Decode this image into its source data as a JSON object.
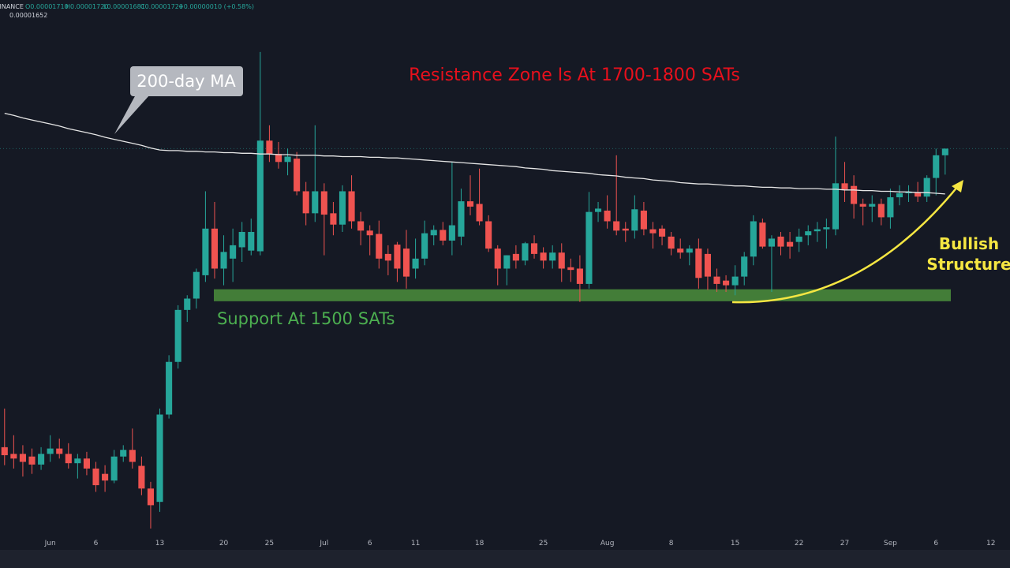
{
  "chart_data": {
    "type": "candlestick",
    "header": {
      "exchange": "BINANCE",
      "open": "O0.00001710",
      "high": "H0.00001720",
      "low": "L0.00001681",
      "close": "C0.00001720",
      "change": "+0.00000010 (+0.58%)",
      "ma_value": "0.00001652"
    },
    "title": "Resistance Zone Is At 1700-1800 SATs",
    "support_label": "Support At 1500 SATs",
    "structure_label": [
      "Bullish",
      "Structure"
    ],
    "support_band": {
      "low": 1491,
      "high": 1509,
      "color": "#4b8f3c"
    },
    "up_color": "#26a69a",
    "down_color": "#ef5350",
    "candles": {
      "open": [
        1272,
        1262,
        1262,
        1258,
        1246,
        1262,
        1270,
        1262,
        1248,
        1255,
        1240,
        1232,
        1222,
        1258,
        1268,
        1244,
        1210,
        1190,
        1321,
        1400,
        1478,
        1495,
        1530,
        1600,
        1540,
        1555,
        1572,
        1567,
        1566,
        1732,
        1712,
        1700,
        1705,
        1656,
        1623,
        1656,
        1623,
        1606,
        1656,
        1611,
        1597,
        1592,
        1562,
        1576,
        1570,
        1540,
        1555,
        1590,
        1598,
        1582,
        1588,
        1641,
        1637,
        1611,
        1570,
        1540,
        1562,
        1552,
        1578,
        1564,
        1552,
        1564,
        1542,
        1540,
        1517,
        1625,
        1627,
        1611,
        1600,
        1597,
        1627,
        1599,
        1600,
        1588,
        1570,
        1564,
        1570,
        1562,
        1528,
        1522,
        1515,
        1528,
        1558,
        1609,
        1573,
        1588,
        1580,
        1580,
        1590,
        1596,
        1599,
        1599,
        1668,
        1664,
        1637,
        1633,
        1637,
        1617,
        1647,
        1653,
        1655,
        1648,
        1676,
        1710
      ],
      "high": [
        1330,
        1290,
        1275,
        1270,
        1272,
        1290,
        1285,
        1278,
        1262,
        1265,
        1250,
        1245,
        1268,
        1275,
        1300,
        1258,
        1220,
        1330,
        1410,
        1485,
        1500,
        1540,
        1656,
        1640,
        1590,
        1600,
        1610,
        1615,
        1865,
        1755,
        1730,
        1720,
        1715,
        1670,
        1755,
        1668,
        1640,
        1665,
        1680,
        1625,
        1605,
        1612,
        1575,
        1580,
        1598,
        1585,
        1612,
        1605,
        1610,
        1700,
        1660,
        1680,
        1690,
        1620,
        1575,
        1560,
        1575,
        1580,
        1590,
        1572,
        1575,
        1578,
        1555,
        1560,
        1655,
        1640,
        1650,
        1710,
        1610,
        1650,
        1640,
        1610,
        1605,
        1595,
        1585,
        1575,
        1585,
        1570,
        1540,
        1530,
        1545,
        1565,
        1620,
        1615,
        1590,
        1595,
        1595,
        1600,
        1605,
        1610,
        1615,
        1738,
        1700,
        1680,
        1645,
        1650,
        1645,
        1660,
        1665,
        1665,
        1670,
        1680,
        1720,
        1720
      ],
      "low": [
        1245,
        1240,
        1228,
        1232,
        1238,
        1250,
        1255,
        1240,
        1225,
        1230,
        1205,
        1205,
        1218,
        1250,
        1240,
        1200,
        1150,
        1175,
        1315,
        1390,
        1460,
        1480,
        1520,
        1525,
        1515,
        1520,
        1550,
        1560,
        1560,
        1700,
        1690,
        1680,
        1650,
        1605,
        1610,
        1560,
        1590,
        1595,
        1600,
        1575,
        1560,
        1540,
        1530,
        1520,
        1510,
        1525,
        1545,
        1575,
        1575,
        1560,
        1575,
        1620,
        1605,
        1565,
        1515,
        1515,
        1540,
        1545,
        1555,
        1540,
        1540,
        1520,
        1520,
        1490,
        1510,
        1610,
        1600,
        1590,
        1580,
        1585,
        1590,
        1570,
        1575,
        1560,
        1555,
        1545,
        1510,
        1508,
        1505,
        1505,
        1500,
        1515,
        1545,
        1570,
        1505,
        1560,
        1555,
        1565,
        1575,
        1580,
        1570,
        1590,
        1640,
        1615,
        1605,
        1610,
        1605,
        1600,
        1635,
        1640,
        1640,
        1640,
        1650,
        1681
      ],
      "close": [
        1260,
        1255,
        1250,
        1246,
        1262,
        1270,
        1262,
        1248,
        1255,
        1240,
        1215,
        1222,
        1258,
        1268,
        1250,
        1210,
        1185,
        1321,
        1400,
        1478,
        1495,
        1535,
        1600,
        1540,
        1565,
        1575,
        1595,
        1595,
        1732,
        1712,
        1700,
        1708,
        1656,
        1623,
        1656,
        1621,
        1606,
        1656,
        1611,
        1597,
        1590,
        1555,
        1552,
        1540,
        1528,
        1555,
        1593,
        1598,
        1582,
        1605,
        1641,
        1633,
        1611,
        1570,
        1540,
        1560,
        1552,
        1578,
        1562,
        1552,
        1564,
        1540,
        1538,
        1517,
        1625,
        1630,
        1611,
        1597,
        1597,
        1629,
        1599,
        1593,
        1588,
        1570,
        1564,
        1570,
        1526,
        1528,
        1517,
        1515,
        1528,
        1558,
        1611,
        1573,
        1585,
        1573,
        1573,
        1588,
        1596,
        1599,
        1602,
        1668,
        1659,
        1637,
        1633,
        1637,
        1617,
        1647,
        1653,
        1655,
        1648,
        1676,
        1710,
        1720
      ]
    },
    "series": [
      {
        "name": "200-day MA",
        "color": "#e6e6e6",
        "values": [
          1773,
          1770,
          1766,
          1763,
          1760,
          1757,
          1754,
          1750,
          1747,
          1744,
          1741,
          1737,
          1734,
          1731,
          1728,
          1725,
          1721,
          1718,
          1717,
          1717,
          1716,
          1716,
          1715,
          1715,
          1714,
          1714,
          1713,
          1713,
          1712,
          1712,
          1711,
          1711,
          1710,
          1710,
          1710,
          1709,
          1709,
          1708,
          1708,
          1708,
          1707,
          1707,
          1706,
          1706,
          1705,
          1704,
          1703,
          1702,
          1701,
          1700,
          1699,
          1698,
          1697,
          1696,
          1695,
          1694,
          1693,
          1691,
          1690,
          1689,
          1687,
          1686,
          1685,
          1684,
          1683,
          1681,
          1680,
          1679,
          1677,
          1676,
          1675,
          1673,
          1672,
          1671,
          1669,
          1668,
          1667,
          1667,
          1666,
          1665,
          1664,
          1664,
          1663,
          1662,
          1662,
          1661,
          1661,
          1660,
          1660,
          1660,
          1659,
          1659,
          1658,
          1658,
          1657,
          1657,
          1656,
          1656,
          1655,
          1655,
          1654,
          1654,
          1653,
          1652
        ]
      }
    ],
    "xlim": [
      -0.5,
      110.1
    ],
    "ylim": [
      1118,
      1943
    ],
    "xticks": [
      {
        "value": 5,
        "label": "Jun"
      },
      {
        "value": 10,
        "label": "6"
      },
      {
        "value": 17,
        "label": "13"
      },
      {
        "value": 24,
        "label": "20"
      },
      {
        "value": 29,
        "label": "25"
      },
      {
        "value": 35,
        "label": "Jul"
      },
      {
        "value": 40,
        "label": "6"
      },
      {
        "value": 45,
        "label": "11"
      },
      {
        "value": 52,
        "label": "18"
      },
      {
        "value": 59,
        "label": "25"
      },
      {
        "value": 66,
        "label": "Aug"
      },
      {
        "value": 73,
        "label": "8"
      },
      {
        "value": 80,
        "label": "15"
      },
      {
        "value": 87,
        "label": "22"
      },
      {
        "value": 92,
        "label": "27"
      },
      {
        "value": 97,
        "label": "Sep"
      },
      {
        "value": 102,
        "label": "6"
      },
      {
        "value": 108,
        "label": "12"
      }
    ]
  }
}
